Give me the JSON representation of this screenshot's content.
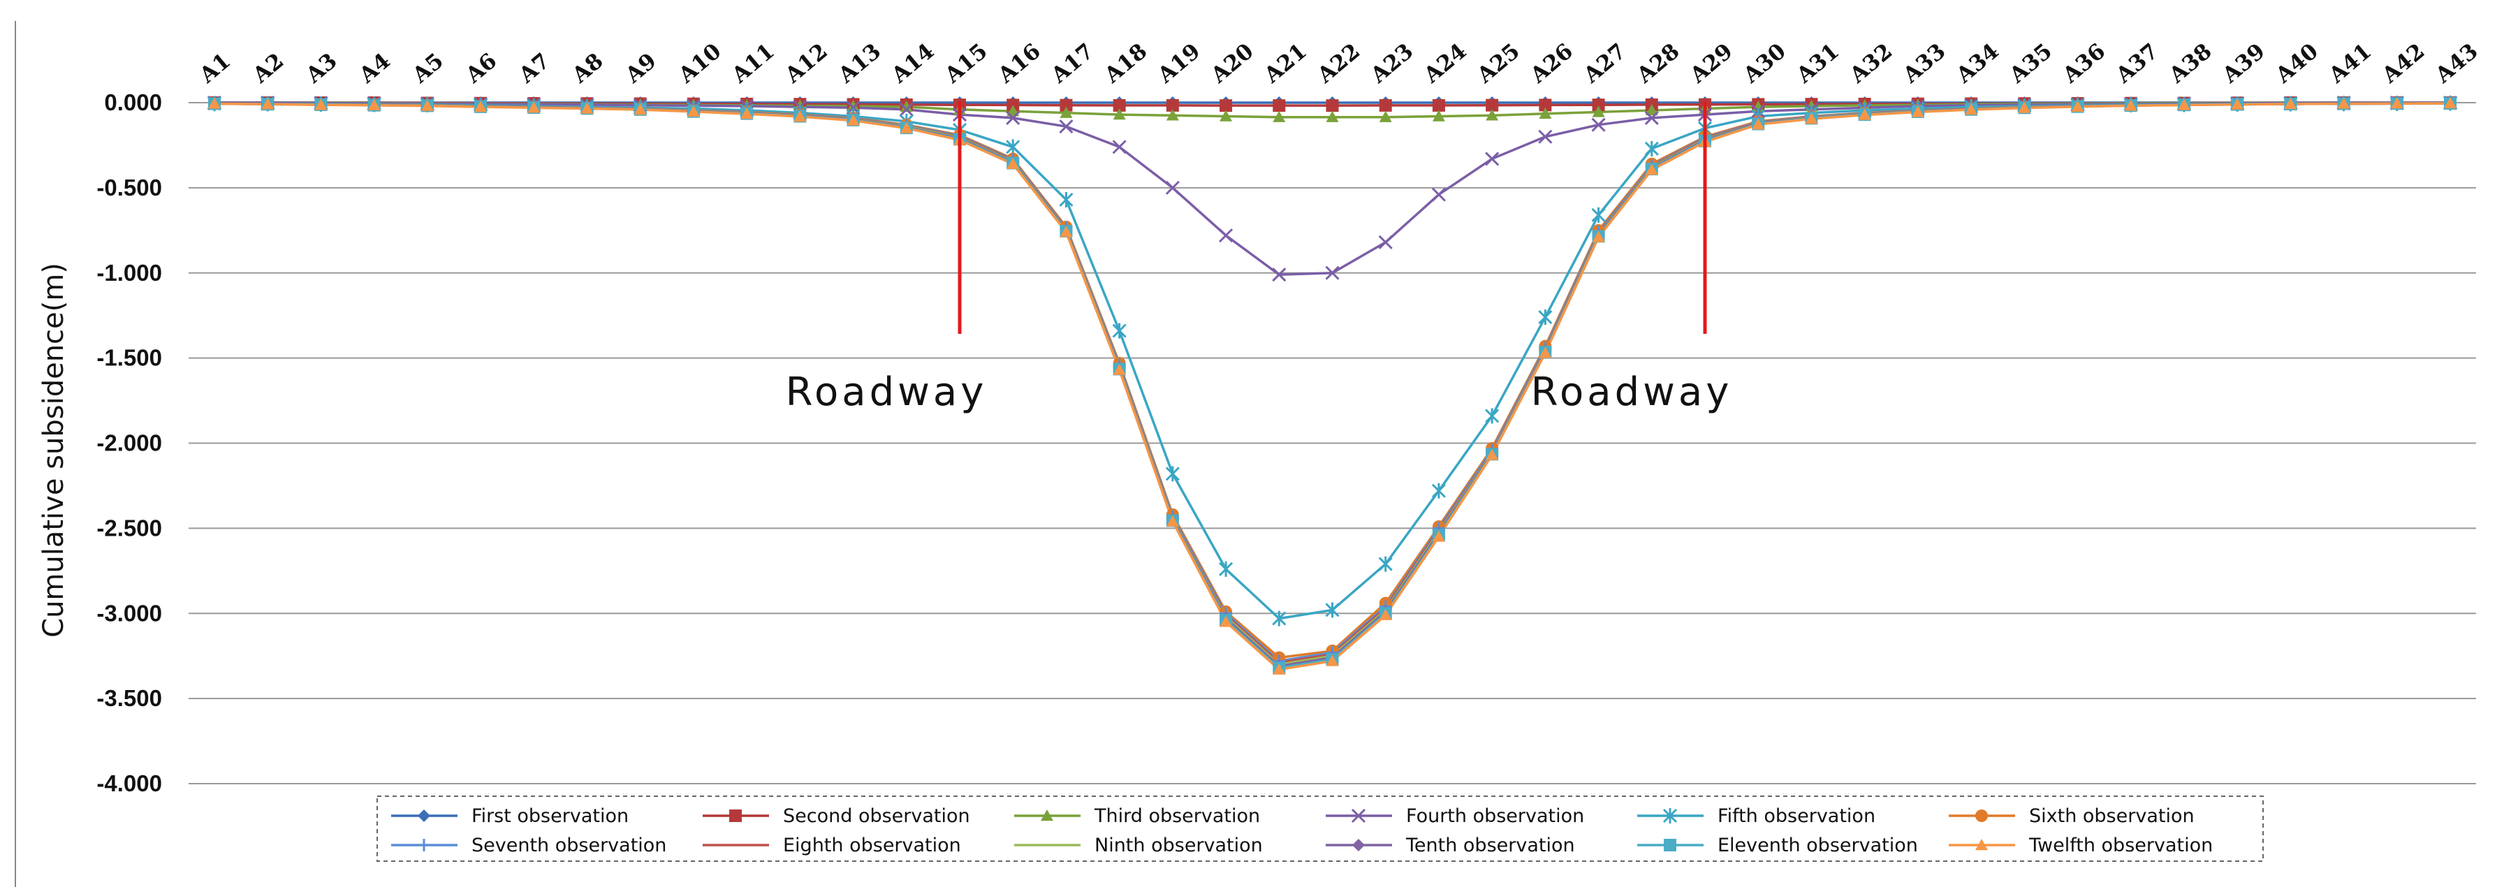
{
  "chart_data": {
    "type": "line",
    "ylabel": "Cumulative subsidence(m)",
    "ylim": [
      -4.0,
      0.0
    ],
    "yticks": [
      0,
      -0.5,
      -1,
      -1.5,
      -2,
      -2.5,
      -3,
      -3.5,
      -4
    ],
    "ytick_labels": [
      "0.000",
      "-0.500",
      "-1.000",
      "-1.500",
      "-2.000",
      "-2.500",
      "-3.000",
      "-3.500",
      "-4.000"
    ],
    "categories": [
      "A1",
      "A2",
      "A3",
      "A4",
      "A5",
      "A6",
      "A7",
      "A8",
      "A9",
      "A10",
      "A11",
      "A12",
      "A13",
      "A14",
      "A15",
      "A16",
      "A17",
      "A18",
      "A19",
      "A20",
      "A21",
      "A22",
      "A23",
      "A24",
      "A25",
      "A26",
      "A27",
      "A28",
      "A29",
      "A30",
      "A31",
      "A32",
      "A33",
      "A34",
      "A35",
      "A36",
      "A37",
      "A38",
      "A39",
      "A40",
      "A41",
      "A42",
      "A43"
    ],
    "grid": true,
    "x_axis_position": "top",
    "legend_position": "bottom",
    "annotations": [
      {
        "text": "Roadway",
        "x_category": "A15"
      },
      {
        "text": "Roadway",
        "x_category": "A29"
      }
    ],
    "roadway_line_color": "#e31a1c",
    "series": [
      {
        "name": "First observation",
        "color": "#3b6fb6",
        "marker": "diamond",
        "values": [
          0,
          0,
          0,
          0,
          0,
          0,
          0,
          0,
          0,
          0,
          0,
          0,
          0,
          0,
          0,
          0,
          0,
          0,
          0,
          0,
          0,
          0,
          0,
          0,
          0,
          0,
          0,
          0,
          0,
          0,
          0,
          0,
          0,
          0,
          0,
          0,
          0,
          0,
          0,
          0,
          0,
          0,
          0
        ]
      },
      {
        "name": "Second observation",
        "color": "#b5393a",
        "marker": "square",
        "values": [
          0,
          0,
          0,
          0,
          -0.002,
          -0.003,
          -0.004,
          -0.005,
          -0.006,
          -0.007,
          -0.008,
          -0.009,
          -0.01,
          -0.012,
          -0.013,
          -0.014,
          -0.015,
          -0.016,
          -0.016,
          -0.017,
          -0.017,
          -0.017,
          -0.016,
          -0.016,
          -0.015,
          -0.014,
          -0.013,
          -0.012,
          -0.011,
          -0.01,
          -0.009,
          -0.008,
          -0.007,
          -0.006,
          -0.005,
          -0.004,
          -0.003,
          -0.002,
          -0.001,
          0,
          0,
          0,
          0
        ]
      },
      {
        "name": "Third observation",
        "color": "#7aa23a",
        "marker": "triangle",
        "values": [
          0,
          0,
          0,
          -0.002,
          -0.004,
          -0.006,
          -0.008,
          -0.01,
          -0.012,
          -0.014,
          -0.016,
          -0.018,
          -0.02,
          -0.025,
          -0.04,
          -0.05,
          -0.06,
          -0.07,
          -0.075,
          -0.08,
          -0.085,
          -0.085,
          -0.085,
          -0.08,
          -0.075,
          -0.065,
          -0.055,
          -0.045,
          -0.035,
          -0.025,
          -0.02,
          -0.016,
          -0.013,
          -0.01,
          -0.008,
          -0.006,
          -0.004,
          -0.003,
          -0.002,
          -0.001,
          0,
          0,
          0
        ]
      },
      {
        "name": "Fourth observation",
        "color": "#7b5ea7",
        "marker": "x",
        "values": [
          0,
          0,
          -0.002,
          -0.004,
          -0.006,
          -0.008,
          -0.01,
          -0.012,
          -0.015,
          -0.018,
          -0.02,
          -0.025,
          -0.03,
          -0.04,
          -0.07,
          -0.09,
          -0.14,
          -0.26,
          -0.5,
          -0.78,
          -1.01,
          -1.0,
          -0.82,
          -0.54,
          -0.33,
          -0.2,
          -0.13,
          -0.09,
          -0.07,
          -0.05,
          -0.04,
          -0.03,
          -0.02,
          -0.015,
          -0.012,
          -0.01,
          -0.008,
          -0.006,
          -0.004,
          -0.002,
          0,
          0,
          0
        ]
      },
      {
        "name": "Fifth observation",
        "color": "#3aa6c4",
        "marker": "star",
        "values": [
          -0.005,
          -0.006,
          -0.008,
          -0.01,
          -0.012,
          -0.015,
          -0.02,
          -0.025,
          -0.03,
          -0.035,
          -0.045,
          -0.06,
          -0.08,
          -0.11,
          -0.16,
          -0.26,
          -0.57,
          -1.34,
          -2.18,
          -2.74,
          -3.03,
          -2.98,
          -2.71,
          -2.28,
          -1.84,
          -1.26,
          -0.66,
          -0.27,
          -0.15,
          -0.08,
          -0.06,
          -0.045,
          -0.035,
          -0.025,
          -0.02,
          -0.015,
          -0.012,
          -0.01,
          -0.008,
          -0.006,
          -0.005,
          -0.004,
          -0.003
        ]
      },
      {
        "name": "Sixth observation",
        "color": "#e07b2a",
        "marker": "circle",
        "values": [
          -0.005,
          -0.007,
          -0.01,
          -0.012,
          -0.015,
          -0.02,
          -0.025,
          -0.03,
          -0.035,
          -0.045,
          -0.055,
          -0.07,
          -0.09,
          -0.13,
          -0.19,
          -0.33,
          -0.73,
          -1.53,
          -2.42,
          -2.99,
          -3.26,
          -3.22,
          -2.94,
          -2.49,
          -2.03,
          -1.43,
          -0.75,
          -0.36,
          -0.2,
          -0.11,
          -0.08,
          -0.06,
          -0.045,
          -0.035,
          -0.025,
          -0.02,
          -0.015,
          -0.012,
          -0.01,
          -0.008,
          -0.006,
          -0.005,
          -0.004
        ]
      },
      {
        "name": "Seventh observation",
        "color": "#5b8ed6",
        "marker": "plus",
        "values": [
          -0.005,
          -0.007,
          -0.01,
          -0.013,
          -0.016,
          -0.02,
          -0.025,
          -0.03,
          -0.036,
          -0.046,
          -0.056,
          -0.072,
          -0.092,
          -0.135,
          -0.195,
          -0.335,
          -0.735,
          -1.54,
          -2.43,
          -3.0,
          -3.28,
          -3.23,
          -2.96,
          -2.5,
          -2.04,
          -1.44,
          -0.76,
          -0.37,
          -0.205,
          -0.115,
          -0.082,
          -0.062,
          -0.046,
          -0.036,
          -0.026,
          -0.02,
          -0.015,
          -0.012,
          -0.01,
          -0.008,
          -0.006,
          -0.005,
          -0.004
        ]
      },
      {
        "name": "Eighth observation",
        "color": "#c0504d",
        "marker": "dash",
        "values": [
          -0.005,
          -0.007,
          -0.011,
          -0.013,
          -0.016,
          -0.021,
          -0.026,
          -0.031,
          -0.037,
          -0.047,
          -0.058,
          -0.074,
          -0.095,
          -0.138,
          -0.2,
          -0.34,
          -0.74,
          -1.55,
          -2.44,
          -3.01,
          -3.29,
          -3.24,
          -2.97,
          -2.51,
          -2.05,
          -1.45,
          -0.77,
          -0.375,
          -0.21,
          -0.118,
          -0.085,
          -0.064,
          -0.048,
          -0.037,
          -0.027,
          -0.021,
          -0.016,
          -0.013,
          -0.01,
          -0.008,
          -0.006,
          -0.005,
          -0.004
        ]
      },
      {
        "name": "Ninth observation",
        "color": "#9bbb59",
        "marker": "dash",
        "values": [
          -0.006,
          -0.008,
          -0.011,
          -0.014,
          -0.017,
          -0.022,
          -0.027,
          -0.032,
          -0.038,
          -0.048,
          -0.06,
          -0.076,
          -0.098,
          -0.14,
          -0.205,
          -0.345,
          -0.745,
          -1.555,
          -2.445,
          -3.02,
          -3.3,
          -3.25,
          -2.98,
          -2.52,
          -2.055,
          -1.455,
          -0.775,
          -0.38,
          -0.215,
          -0.12,
          -0.087,
          -0.066,
          -0.05,
          -0.038,
          -0.028,
          -0.022,
          -0.016,
          -0.013,
          -0.01,
          -0.008,
          -0.006,
          -0.005,
          -0.004
        ]
      },
      {
        "name": "Tenth observation",
        "color": "#8064a2",
        "marker": "diamond",
        "values": [
          -0.006,
          -0.008,
          -0.012,
          -0.014,
          -0.018,
          -0.023,
          -0.028,
          -0.033,
          -0.039,
          -0.05,
          -0.062,
          -0.078,
          -0.1,
          -0.145,
          -0.21,
          -0.35,
          -0.75,
          -1.56,
          -2.45,
          -3.03,
          -3.31,
          -3.26,
          -2.99,
          -2.53,
          -2.06,
          -1.46,
          -0.78,
          -0.385,
          -0.22,
          -0.122,
          -0.09,
          -0.068,
          -0.052,
          -0.039,
          -0.029,
          -0.022,
          -0.017,
          -0.013,
          -0.01,
          -0.008,
          -0.006,
          -0.005,
          -0.004
        ]
      },
      {
        "name": "Eleventh observation",
        "color": "#4bacc6",
        "marker": "square",
        "values": [
          -0.006,
          -0.009,
          -0.012,
          -0.015,
          -0.018,
          -0.024,
          -0.029,
          -0.034,
          -0.04,
          -0.052,
          -0.064,
          -0.08,
          -0.102,
          -0.148,
          -0.215,
          -0.355,
          -0.755,
          -1.565,
          -2.455,
          -3.04,
          -3.32,
          -3.27,
          -3.0,
          -2.54,
          -2.065,
          -1.465,
          -0.785,
          -0.39,
          -0.225,
          -0.125,
          -0.092,
          -0.07,
          -0.053,
          -0.04,
          -0.03,
          -0.023,
          -0.017,
          -0.013,
          -0.01,
          -0.008,
          -0.006,
          -0.005,
          -0.004
        ]
      },
      {
        "name": "Twelfth observation",
        "color": "#f79646",
        "marker": "triangle",
        "values": [
          -0.006,
          -0.009,
          -0.013,
          -0.015,
          -0.019,
          -0.025,
          -0.03,
          -0.035,
          -0.041,
          -0.053,
          -0.066,
          -0.082,
          -0.105,
          -0.15,
          -0.22,
          -0.36,
          -0.76,
          -1.57,
          -2.46,
          -3.05,
          -3.33,
          -3.28,
          -3.01,
          -2.55,
          -2.07,
          -1.47,
          -0.79,
          -0.395,
          -0.23,
          -0.128,
          -0.095,
          -0.072,
          -0.055,
          -0.041,
          -0.031,
          -0.024,
          -0.018,
          -0.014,
          -0.011,
          -0.008,
          -0.006,
          -0.005,
          -0.004
        ]
      }
    ]
  }
}
